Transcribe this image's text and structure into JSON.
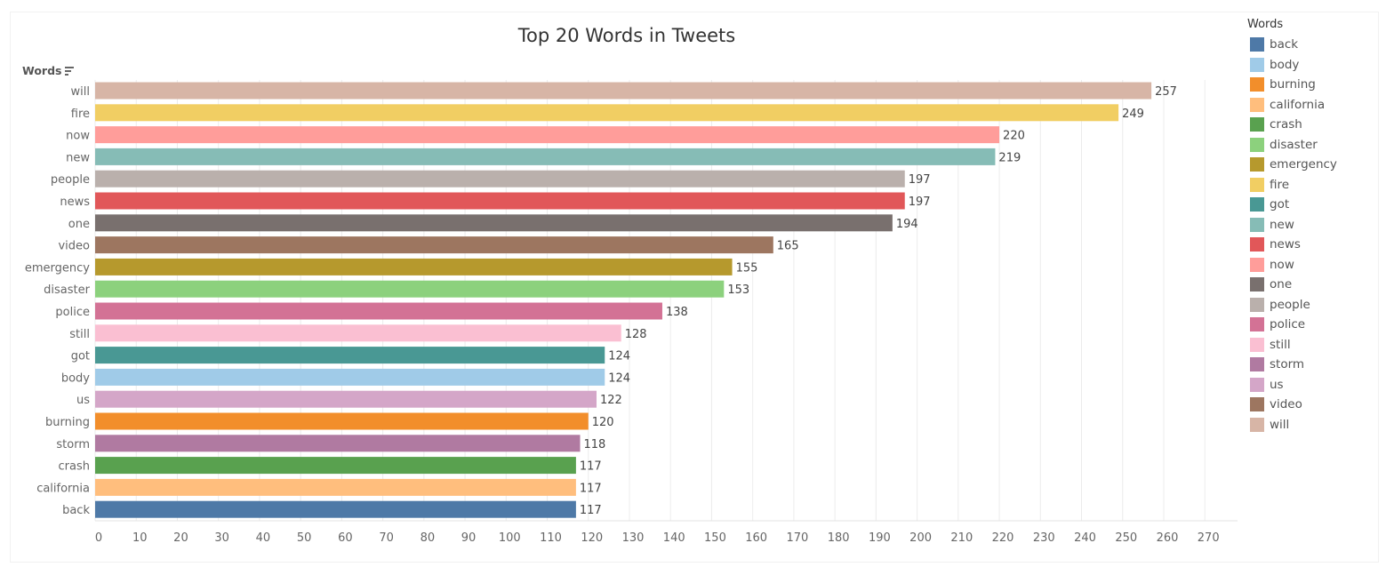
{
  "chart_data": {
    "type": "bar",
    "orientation": "horizontal",
    "title": "Top 20 Words in Tweets",
    "ylabel": "Words",
    "xlabel": "",
    "xlim": [
      0,
      270
    ],
    "xticks": [
      0,
      10,
      20,
      30,
      40,
      50,
      60,
      70,
      80,
      90,
      100,
      110,
      120,
      130,
      140,
      150,
      160,
      170,
      180,
      190,
      200,
      210,
      220,
      230,
      240,
      250,
      260,
      270
    ],
    "grid": true,
    "legend_position": "right",
    "categories": [
      "will",
      "fire",
      "now",
      "new",
      "people",
      "news",
      "one",
      "video",
      "emergency",
      "disaster",
      "police",
      "still",
      "got",
      "body",
      "us",
      "burning",
      "storm",
      "crash",
      "california",
      "back"
    ],
    "values": [
      257,
      249,
      220,
      219,
      197,
      197,
      194,
      165,
      155,
      153,
      138,
      128,
      124,
      124,
      122,
      120,
      118,
      117,
      117,
      117
    ],
    "colors": {
      "will": "#d7b5a6",
      "fire": "#f1ce63",
      "now": "#ff9d9a",
      "new": "#86bcb6",
      "people": "#bab0ac",
      "news": "#e15759",
      "one": "#79706e",
      "video": "#9d7660",
      "emergency": "#b6992d",
      "disaster": "#8cd17d",
      "police": "#d37295",
      "still": "#fabfd2",
      "got": "#499894",
      "body": "#a0cbe8",
      "us": "#d4a6c8",
      "burning": "#f28e2b",
      "storm": "#b07aa1",
      "crash": "#59a14f",
      "california": "#ffbe7d",
      "back": "#4e79a7"
    },
    "legend": {
      "title": "Words",
      "items": [
        "back",
        "body",
        "burning",
        "california",
        "crash",
        "disaster",
        "emergency",
        "fire",
        "got",
        "new",
        "news",
        "now",
        "one",
        "people",
        "police",
        "still",
        "storm",
        "us",
        "video",
        "will"
      ]
    }
  }
}
